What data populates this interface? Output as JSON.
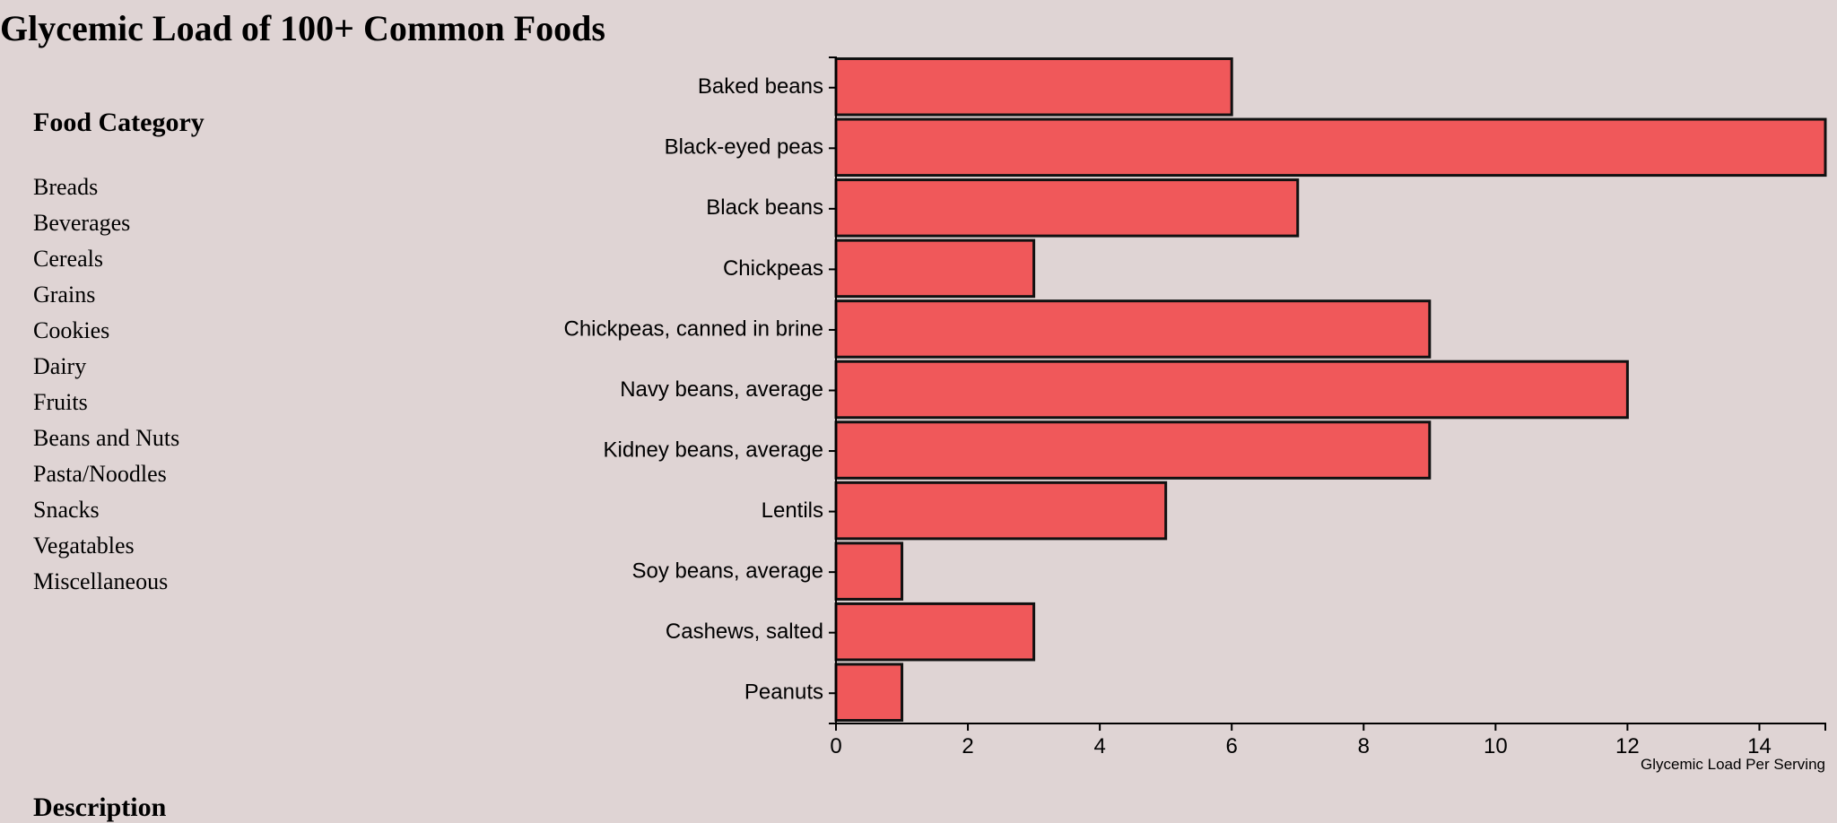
{
  "page": {
    "title": "Glycemic Load of 100+ Common Foods"
  },
  "sidebar": {
    "heading": "Food Category",
    "items": [
      {
        "label": "Breads"
      },
      {
        "label": "Beverages"
      },
      {
        "label": "Cereals"
      },
      {
        "label": "Grains"
      },
      {
        "label": "Cookies"
      },
      {
        "label": "Dairy"
      },
      {
        "label": "Fruits"
      },
      {
        "label": "Beans and Nuts"
      },
      {
        "label": "Pasta/Noodles"
      },
      {
        "label": "Snacks"
      },
      {
        "label": "Vegatables"
      },
      {
        "label": "Miscellaneous"
      }
    ]
  },
  "description": {
    "heading": "Description"
  },
  "colors": {
    "bar_fill": "#f0585a",
    "bar_stroke": "#111111",
    "background": "#dfd4d4"
  },
  "chart_data": {
    "type": "bar",
    "orientation": "horizontal",
    "categories": [
      "Baked beans",
      "Black-eyed peas",
      "Black beans",
      "Chickpeas",
      "Chickpeas, canned in brine",
      "Navy beans, average",
      "Kidney beans, average",
      "Lentils",
      "Soy beans, average",
      "Cashews, salted",
      "Peanuts"
    ],
    "values": [
      6,
      15,
      7,
      3,
      9,
      12,
      9,
      5,
      1,
      3,
      1
    ],
    "xlabel": "Glycemic Load Per Serving",
    "xlim": [
      0,
      15
    ],
    "xticks": [
      0,
      2,
      4,
      6,
      8,
      10,
      12,
      14
    ],
    "grid": false,
    "legend": "none"
  }
}
